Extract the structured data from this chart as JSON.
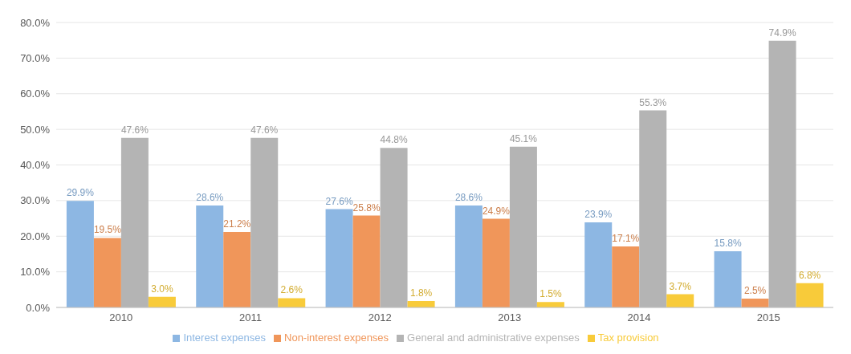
{
  "chart_data": {
    "type": "bar",
    "categories": [
      "2010",
      "2011",
      "2012",
      "2013",
      "2014",
      "2015"
    ],
    "series": [
      {
        "name": "Interest expenses",
        "color": "#8db7e3",
        "values": [
          29.9,
          28.6,
          27.6,
          28.6,
          23.9,
          15.8
        ],
        "value_labels": [
          "29.9%",
          "28.6%",
          "27.6%",
          "28.6%",
          "23.9%",
          "15.8%"
        ]
      },
      {
        "name": "Non-interest expenses",
        "color": "#f0965a",
        "values": [
          19.5,
          21.2,
          25.8,
          24.9,
          17.1,
          2.5
        ],
        "value_labels": [
          "19.5%",
          "21.2%",
          "25.8%",
          "24.9%",
          "17.1%",
          "2.5%"
        ]
      },
      {
        "name": "General and administrative expenses",
        "color": "#b4b4b4",
        "values": [
          47.6,
          47.6,
          44.8,
          45.1,
          55.3,
          74.9
        ],
        "value_labels": [
          "47.6%",
          "47.6%",
          "44.8%",
          "45.1%",
          "55.3%",
          "74.9%"
        ]
      },
      {
        "name": "Tax provision",
        "color": "#f8cb3a",
        "values": [
          3.0,
          2.6,
          1.8,
          1.5,
          3.7,
          6.8
        ],
        "value_labels": [
          "3.0%",
          "2.6%",
          "1.8%",
          "1.5%",
          "3.7%",
          "6.8%"
        ]
      }
    ],
    "ylim": [
      0,
      80
    ],
    "yticks": [
      {
        "value": 0,
        "label": "0.0%"
      },
      {
        "value": 10,
        "label": "10.0%"
      },
      {
        "value": 20,
        "label": "20.0%"
      },
      {
        "value": 30,
        "label": "30.0%"
      },
      {
        "value": 40,
        "label": "40.0%"
      },
      {
        "value": 50,
        "label": "50.0%"
      },
      {
        "value": 60,
        "label": "60.0%"
      },
      {
        "value": 70,
        "label": "70.0%"
      },
      {
        "value": 80,
        "label": "80.0%"
      }
    ],
    "grid": "y",
    "legend": "bottom"
  }
}
